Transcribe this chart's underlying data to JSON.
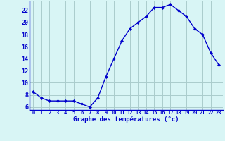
{
  "x": [
    0,
    1,
    2,
    3,
    4,
    5,
    6,
    7,
    8,
    9,
    10,
    11,
    12,
    13,
    14,
    15,
    16,
    17,
    18,
    19,
    20,
    21,
    22,
    23
  ],
  "y": [
    8.5,
    7.5,
    7.0,
    7.0,
    7.0,
    7.0,
    6.5,
    6.0,
    7.5,
    11.0,
    14.0,
    17.0,
    19.0,
    20.0,
    21.0,
    22.5,
    22.5,
    23.0,
    22.0,
    21.0,
    19.0,
    18.0,
    15.0,
    13.0
  ],
  "xlabel": "Graphe des températures (°c)",
  "xlim_min": -0.5,
  "xlim_max": 23.5,
  "ylim_min": 5.5,
  "ylim_max": 23.5,
  "yticks": [
    6,
    8,
    10,
    12,
    14,
    16,
    18,
    20,
    22
  ],
  "xtick_labels": [
    "0",
    "1",
    "2",
    "3",
    "4",
    "5",
    "6",
    "7",
    "8",
    "9",
    "10",
    "11",
    "12",
    "13",
    "14",
    "15",
    "16",
    "17",
    "18",
    "19",
    "20",
    "21",
    "22",
    "23"
  ],
  "line_color": "#0000cc",
  "marker_color": "#0000cc",
  "bg_color": "#d8f5f5",
  "grid_color": "#aacccc",
  "axis_label_color": "#0000cc",
  "tick_color": "#0000cc",
  "spine_color": "#0000cc"
}
